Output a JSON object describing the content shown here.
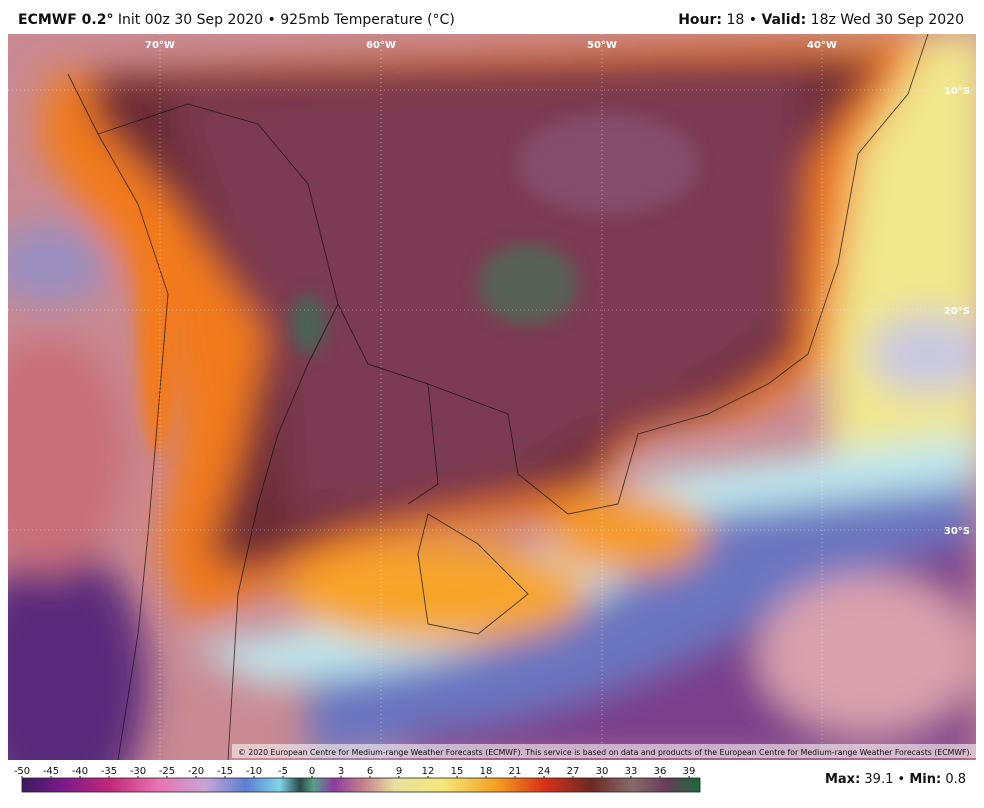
{
  "header": {
    "model": "ECMWF 0.2°",
    "init": "Init 00z 30 Sep 2020",
    "separator": "•",
    "field": "925mb Temperature (°C)",
    "hour_label": "Hour:",
    "hour": "18",
    "valid_label": "Valid:",
    "valid": "18z Wed 30 Sep 2020"
  },
  "map": {
    "lon_labels": [
      "70°W",
      "60°W",
      "50°W",
      "40°W"
    ],
    "lat_labels": [
      "10°S",
      "20°S",
      "30°S"
    ],
    "credit": "© 2020 European Centre for Medium-range Weather Forecasts (ECMWF). This service is based on data and products of the European Centre for Medium-range Weather Forecasts (ECMWF)."
  },
  "colorbar": {
    "ticks": [
      -50,
      -45,
      -40,
      -35,
      -30,
      -25,
      -20,
      -15,
      -10,
      -5,
      0,
      3,
      6,
      9,
      12,
      15,
      18,
      21,
      24,
      27,
      30,
      33,
      36,
      39
    ]
  },
  "footer": {
    "max_label": "Max:",
    "max": 39.1,
    "separator": "•",
    "min_label": "Min:",
    "min": 0.8
  }
}
